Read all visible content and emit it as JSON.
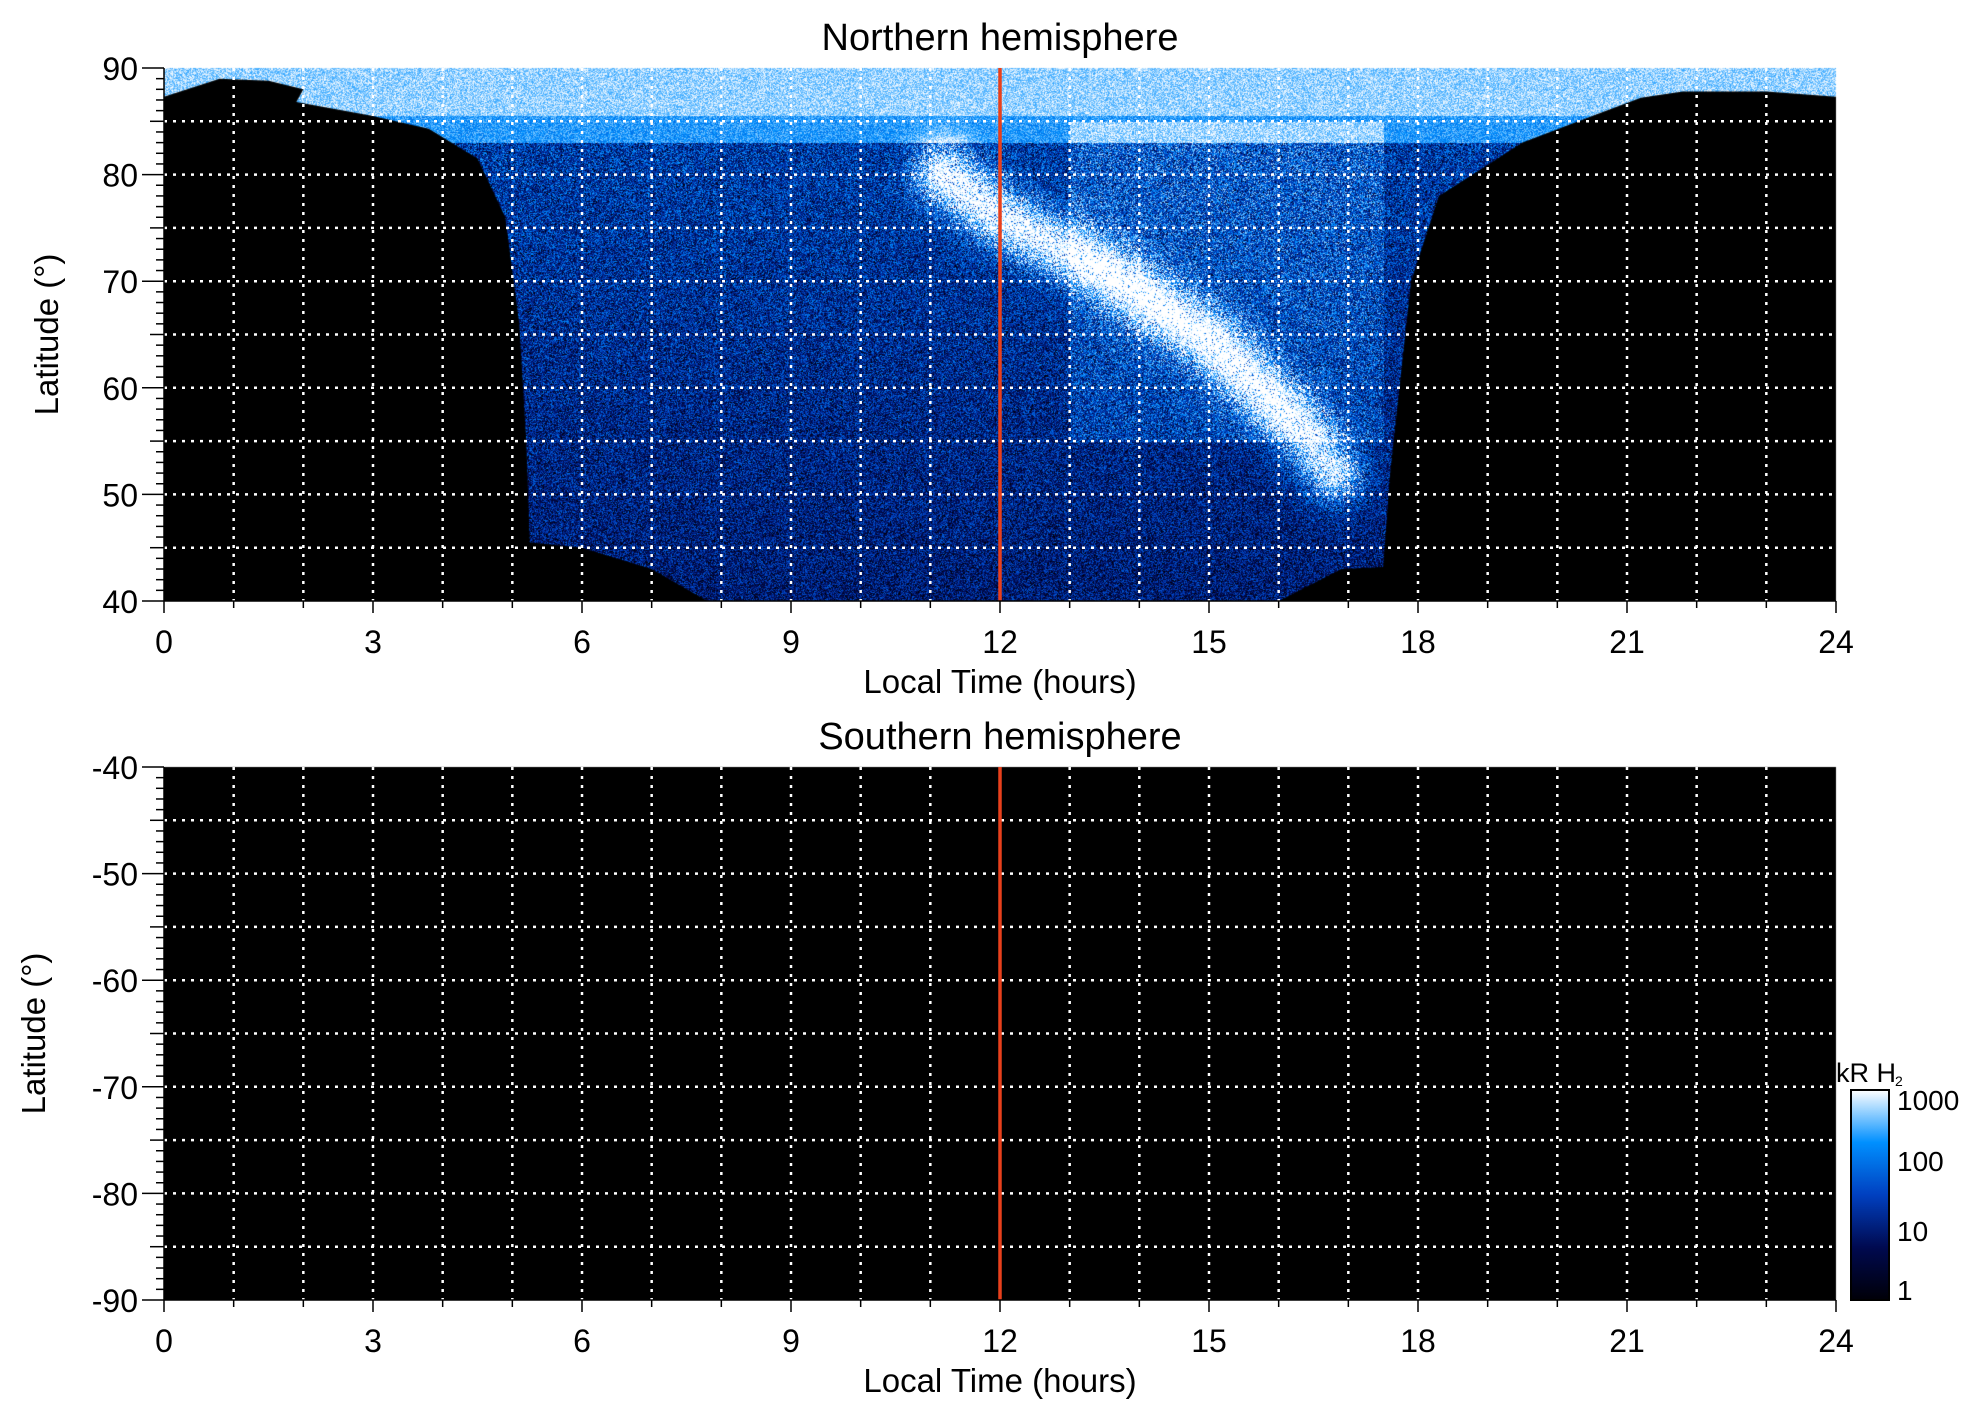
{
  "chart_data": [
    {
      "type": "heatmap",
      "title": "Northern hemisphere",
      "xlabel": "Local Time (hours)",
      "ylabel": "Latitude (°)",
      "xlim": [
        0,
        24
      ],
      "ylim": [
        40,
        90
      ],
      "xticks": [
        "0",
        "3",
        "6",
        "9",
        "12",
        "15",
        "18",
        "21",
        "24"
      ],
      "yticks": [
        "40",
        "50",
        "60",
        "70",
        "80",
        "90"
      ],
      "grid": true,
      "grid_style": "dotted white, every 1 hour and every 5°",
      "marker_line": {
        "x": 12,
        "color": "#e8401c"
      },
      "content": "H2 auroral emission: bright polar cap above ~86°, dayside emission from ~5 h to ~18 h LT down to ~40°, bright arc from ~11 h at 80° to ~16.5 h at 52°"
    },
    {
      "type": "heatmap",
      "title": "Southern hemisphere",
      "xlabel": "Local Time (hours)",
      "ylabel": "Latitude (°)",
      "xlim": [
        0,
        24
      ],
      "ylim": [
        -90,
        -40
      ],
      "xticks": [
        "0",
        "3",
        "6",
        "9",
        "12",
        "15",
        "18",
        "21",
        "24"
      ],
      "yticks": [
        "-40",
        "-50",
        "-60",
        "-70",
        "-80",
        "-90"
      ],
      "grid": true,
      "marker_line": {
        "x": 12,
        "color": "#e8401c"
      },
      "content": "no emission (all black)"
    }
  ],
  "colorbar": {
    "label": "kR H",
    "label_subscript": "2",
    "scale": "log",
    "range": [
      1,
      1000
    ],
    "ticks": [
      "1000",
      "100",
      "10",
      "1"
    ],
    "colors": [
      "#000008",
      "#000a50",
      "#0040c0",
      "#0090ff",
      "#ffffff"
    ]
  }
}
